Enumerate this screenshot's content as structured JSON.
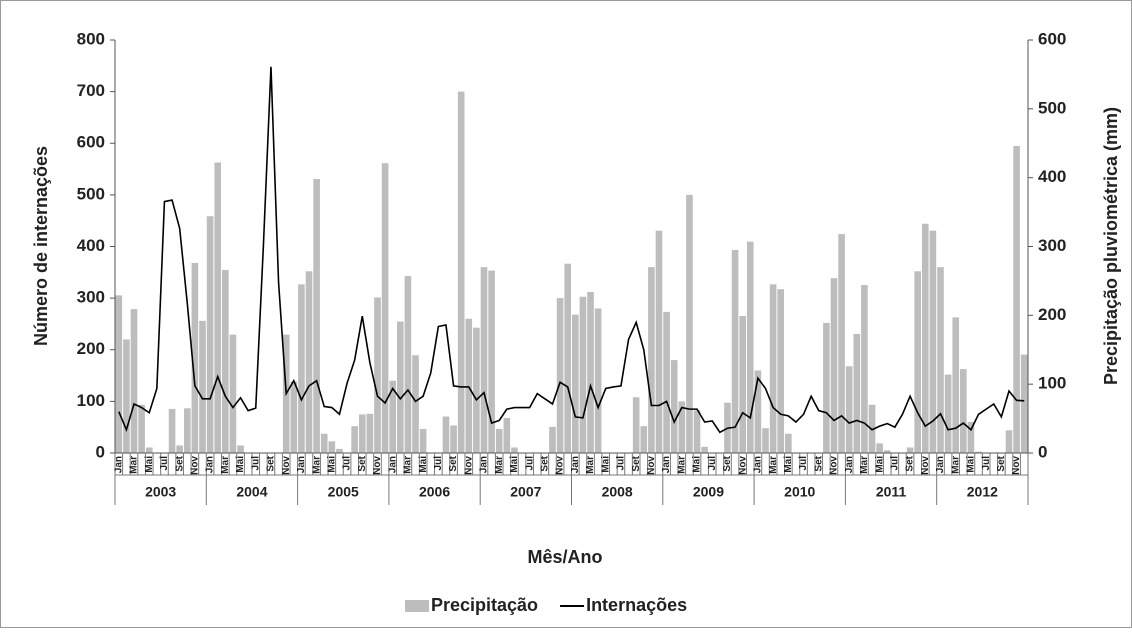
{
  "chart_data": {
    "type": "bar-line",
    "x_label": "Mês/Ano",
    "y_label": "Número de internações",
    "y2_label": "Precipitação pluviométrica (mm)",
    "categories": [
      "Jan",
      null,
      "Mar",
      null,
      "Mai",
      null,
      "Jul",
      null,
      "Set",
      null,
      "Nov",
      null,
      "Jan",
      null,
      "Mar",
      null,
      "Mai",
      null,
      "Jul",
      null,
      "Set",
      null,
      "Nov",
      null,
      "Jan",
      null,
      "Mar",
      null,
      "Mai",
      null,
      "Jul",
      null,
      "Set",
      null,
      "Nov",
      null,
      "Jan",
      null,
      "Mar",
      null,
      "Mai",
      null,
      "Jul",
      null,
      "Set",
      null,
      "Nov",
      null,
      "Jan",
      null,
      "Mar",
      null,
      "Mai",
      null,
      "Jul",
      null,
      "Set",
      null,
      "Nov",
      null,
      "Jan",
      null,
      "Mar",
      null,
      "Mai",
      null,
      "Jul",
      null,
      "Set",
      null,
      "Nov",
      null,
      "Jan",
      null,
      "Mar",
      null,
      "Mai",
      null,
      "Jul",
      null,
      "Set",
      null,
      "Nov",
      null,
      "Jan",
      null,
      "Mar",
      null,
      "Mai",
      null,
      "Jul",
      null,
      "Set",
      null,
      "Nov",
      null,
      "Jan",
      null,
      "Mar",
      null,
      "Mai",
      null,
      "Jul",
      null,
      "Set",
      null,
      "Nov",
      null,
      "Jan",
      null,
      "Mar",
      null,
      "Mai",
      null,
      "Jul",
      null,
      "Set",
      null,
      "Nov",
      null
    ],
    "groups": [
      "2003",
      "2004",
      "2005",
      "2006",
      "2007",
      "2008",
      "2009",
      "2010",
      "2011",
      "2012"
    ],
    "series": [
      {
        "name": "Precipitação",
        "type": "bar",
        "axis": "y2",
        "color": "#bdbdbd",
        "values": [
          229,
          165,
          209,
          70,
          8,
          0,
          0,
          64,
          11,
          65,
          276,
          192,
          344,
          422,
          266,
          172,
          11,
          0,
          0,
          0,
          0,
          0,
          172,
          104,
          245,
          264,
          398,
          28,
          17,
          6,
          0,
          39,
          56,
          57,
          226,
          421,
          105,
          191,
          257,
          142,
          35,
          0,
          0,
          53,
          40,
          525,
          195,
          182,
          270,
          265,
          35,
          51,
          8,
          0,
          0,
          0,
          0,
          38,
          225,
          275,
          201,
          227,
          234,
          210,
          0,
          0,
          0,
          0,
          81,
          39,
          270,
          323,
          205,
          135,
          75,
          375,
          62,
          9,
          0,
          0,
          73,
          295,
          199,
          307,
          120,
          36,
          245,
          238,
          28,
          0,
          0,
          0,
          0,
          189,
          254,
          318,
          126,
          173,
          244,
          70,
          14,
          4,
          0,
          0,
          8,
          264,
          333,
          323,
          270,
          114,
          197,
          122,
          45,
          2,
          0,
          0,
          0,
          33,
          446,
          143
        ]
      },
      {
        "name": "Internações",
        "type": "line",
        "color": "#000000",
        "values": [
          80,
          45,
          95,
          88,
          78,
          125,
          487,
          490,
          435,
          290,
          130,
          105,
          105,
          148,
          110,
          88,
          107,
          82,
          87,
          400,
          748,
          330,
          115,
          140,
          103,
          130,
          140,
          90,
          88,
          75,
          135,
          180,
          265,
          175,
          110,
          97,
          125,
          105,
          122,
          100,
          110,
          155,
          245,
          248,
          130,
          128,
          128,
          103,
          117,
          58,
          63,
          85,
          88,
          88,
          88,
          115,
          105,
          95,
          137,
          128,
          70,
          68,
          130,
          88,
          125,
          128,
          130,
          220,
          253,
          200,
          92,
          92,
          100,
          60,
          88,
          85,
          85,
          60,
          62,
          40,
          48,
          50,
          78,
          68,
          145,
          125,
          88,
          75,
          72,
          60,
          75,
          110,
          82,
          78,
          63,
          72,
          58,
          63,
          58,
          45,
          52,
          57,
          50,
          75,
          110,
          78,
          52,
          62,
          76,
          45,
          48,
          58,
          45,
          75,
          85,
          95,
          70,
          120,
          102,
          101
        ]
      }
    ],
    "ylim": [
      0,
      800
    ],
    "yticks": [
      0,
      100,
      200,
      300,
      400,
      500,
      600,
      700,
      800
    ],
    "y2lim": [
      0,
      600
    ],
    "y2ticks": [
      0,
      100,
      200,
      300,
      400,
      500,
      600
    ],
    "legend": "bottom"
  }
}
